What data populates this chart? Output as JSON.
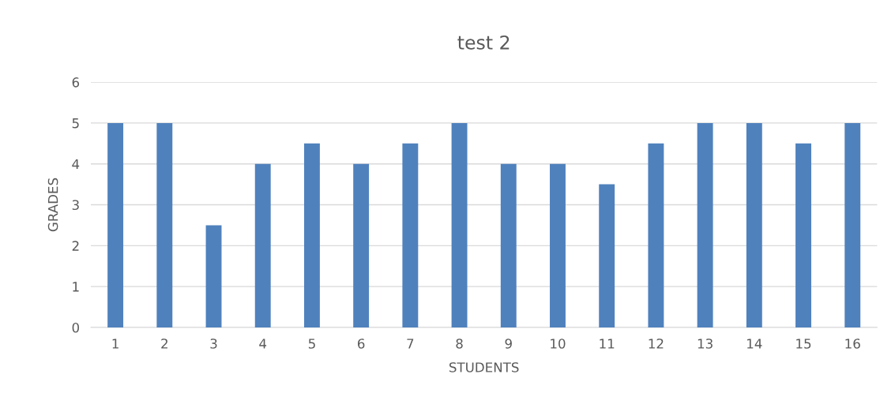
{
  "chart_data": {
    "type": "bar",
    "title": "test 2",
    "xlabel": "STUDENTS",
    "ylabel": "GRADES",
    "categories": [
      "1",
      "2",
      "3",
      "4",
      "5",
      "6",
      "7",
      "8",
      "9",
      "10",
      "11",
      "12",
      "13",
      "14",
      "15",
      "16"
    ],
    "values": [
      5,
      5,
      2.5,
      4,
      4.5,
      4,
      4.5,
      5,
      4,
      4,
      3.5,
      4.5,
      5,
      5,
      4.5,
      5
    ],
    "color": "#4f81bd",
    "ylim": [
      0,
      6
    ],
    "yticks": [
      0,
      1,
      2,
      3,
      4,
      5,
      6
    ],
    "grid": "y",
    "legend": false
  }
}
